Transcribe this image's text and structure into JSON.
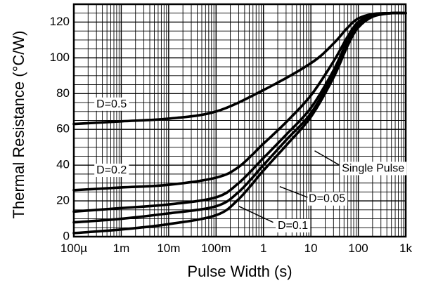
{
  "chart_data": {
    "type": "line",
    "xlabel": "Pulse Width (s)",
    "ylabel": "Thermal Resistance (°C/W)",
    "x_scale": "log",
    "xlim": [
      0.0001,
      1000
    ],
    "ylim": [
      0,
      130
    ],
    "grid": true,
    "x_ticks": [
      {
        "value": 0.0001,
        "label": "100µ"
      },
      {
        "value": 0.001,
        "label": "1m"
      },
      {
        "value": 0.01,
        "label": "10m"
      },
      {
        "value": 0.1,
        "label": "100m"
      },
      {
        "value": 1,
        "label": "1"
      },
      {
        "value": 10,
        "label": "10"
      },
      {
        "value": 100,
        "label": "100"
      },
      {
        "value": 1000,
        "label": "1k"
      }
    ],
    "y_ticks": [
      {
        "value": 0,
        "label": "0"
      },
      {
        "value": 20,
        "label": "20"
      },
      {
        "value": 40,
        "label": "40"
      },
      {
        "value": 60,
        "label": "60"
      },
      {
        "value": 80,
        "label": "80"
      },
      {
        "value": 100,
        "label": "100"
      },
      {
        "value": 120,
        "label": "120"
      }
    ],
    "series": [
      {
        "name": "D=0.5",
        "x": [
          0.0001,
          0.001,
          0.01,
          0.1,
          1,
          10,
          30,
          60,
          100,
          200,
          500,
          1000
        ],
        "y": [
          63,
          64.5,
          66,
          70,
          82,
          97,
          108,
          117,
          122,
          124.5,
          125,
          125
        ]
      },
      {
        "name": "D=0.2",
        "x": [
          0.0001,
          0.001,
          0.01,
          0.1,
          0.3,
          1,
          3,
          10,
          30,
          60,
          100,
          200,
          500,
          1000
        ],
        "y": [
          26,
          27.5,
          29,
          33,
          39,
          52,
          64,
          79,
          98,
          112,
          120,
          124,
          125,
          125
        ]
      },
      {
        "name": "D=0.1",
        "x": [
          0.0001,
          0.001,
          0.01,
          0.1,
          0.3,
          1,
          3,
          10,
          30,
          60,
          100,
          200,
          500,
          1000
        ],
        "y": [
          14,
          16,
          18,
          22,
          30,
          44,
          57,
          72,
          93,
          110,
          119,
          124,
          125,
          125
        ]
      },
      {
        "name": "D=0.05",
        "x": [
          0.0001,
          0.001,
          0.01,
          0.1,
          0.3,
          1,
          3,
          10,
          30,
          60,
          100,
          200,
          500,
          1000
        ],
        "y": [
          8,
          10,
          13,
          17,
          25,
          40,
          54,
          69,
          91,
          109,
          118,
          123.5,
          125,
          125
        ]
      },
      {
        "name": "Single Pulse",
        "x": [
          0.0001,
          0.001,
          0.01,
          0.1,
          0.3,
          1,
          3,
          10,
          30,
          60,
          100,
          200,
          500,
          1000
        ],
        "y": [
          2,
          4,
          7,
          12,
          21,
          37,
          51,
          67,
          89,
          107,
          117,
          123,
          125,
          125
        ]
      }
    ],
    "annotations": [
      {
        "text": "D=0.5",
        "x": 0.0003,
        "y": 74
      },
      {
        "text": "D=0.2",
        "x": 0.0003,
        "y": 37
      },
      {
        "text": "Single Pulse",
        "x": 45,
        "y": 38
      },
      {
        "text": "D=0.05",
        "x": 9,
        "y": 21
      },
      {
        "text": "D=0.1",
        "x": 2,
        "y": 6
      }
    ]
  }
}
